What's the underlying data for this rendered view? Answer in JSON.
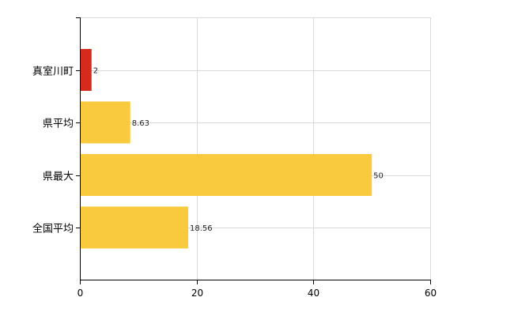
{
  "chart_data": {
    "type": "bar",
    "orientation": "horizontal",
    "categories": [
      "真室川町",
      "県平均",
      "県最大",
      "全国平均"
    ],
    "values": [
      2,
      8.63,
      50,
      18.56
    ],
    "value_labels": [
      "2",
      "8.63",
      "50",
      "18.56"
    ],
    "xlim": [
      0,
      60
    ],
    "x_ticks": [
      0,
      20,
      40,
      60
    ],
    "x_tick_labels": [
      "0",
      "20",
      "40",
      "60"
    ],
    "grid": true,
    "legend": "none",
    "colors": {
      "highlight": "#d42b1e",
      "default": "#f9c93e",
      "grid": "#d9d9d9",
      "axis": "#000000"
    },
    "highlight_index": 0
  }
}
